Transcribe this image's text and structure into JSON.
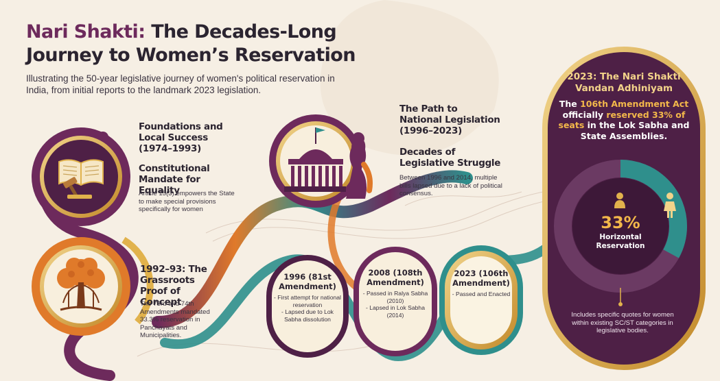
{
  "header": {
    "title_accent": "Nari Shakti:",
    "title_rest": " The Decades-Long Journey to Women’s Reservation",
    "subtitle": "Illustrating the 50-year legislative journey of women's political reservation in India, from initial reports to the landmark 2023 legislation."
  },
  "foundations": {
    "heading": "Foundations and Local Success (1974–1993)",
    "subheading": "Constitutional Mandate for Equality",
    "text": "Article 15(3) empowers the State to make special provisions specifically for women",
    "icon": "book-gavel-icon"
  },
  "grassroots": {
    "heading": "1992–93: The Grassroots Proof of Concept",
    "text": "The 73rd and 74th Amendments mandated 33.3% reservation in Panchayats and Municipalities.",
    "icon": "banyan-tree-icon"
  },
  "national": {
    "heading": "The Path to National Legislation (1996–2023)",
    "subheading": "Decades of Legislative Struggle",
    "text": "Between 1996 and 2014, multiple bills lapsed due to a lack of political consensus.",
    "icon": "parliament-woman-icon"
  },
  "milestones": [
    {
      "title": "1996 (81st Amendment)",
      "points": [
        "- First attempt for national reservation",
        "- Lapsed due to Lok Sabha dissolution"
      ]
    },
    {
      "title": "2008 (108th Amendment)",
      "points": [
        "- Passed in Ralya Sabha (2010)",
        "- Lapsed in Lok Sabha (2014)"
      ]
    },
    {
      "title": "2023 (106th Amendment)",
      "points": [
        "- Passed and Enacted"
      ]
    }
  ],
  "act_card": {
    "title": "2023: The Nari Shakti Vandan Adhiniyam",
    "body_1": "The ",
    "body_hl_1": "106th Amendment Act",
    "body_2": " officially ",
    "body_hl_2": "reserved 33% of seats",
    "body_3": " in the Lok Sabha and State Assemblies.",
    "reserved_share": 33,
    "percent": "33%",
    "percent_label": "Horizontal Reservation",
    "footer": "Includes specific quotes for women within existing SC/ST categories in legislative bodies.",
    "icons": [
      "woman-icon",
      "woman-icon"
    ]
  },
  "colors": {
    "plum": "#4e2046",
    "plum_light": "#6d2a5c",
    "gold": "#e1b24c",
    "orange": "#e07a2a",
    "teal": "#2f8f8c",
    "cream": "#f6efe4"
  }
}
